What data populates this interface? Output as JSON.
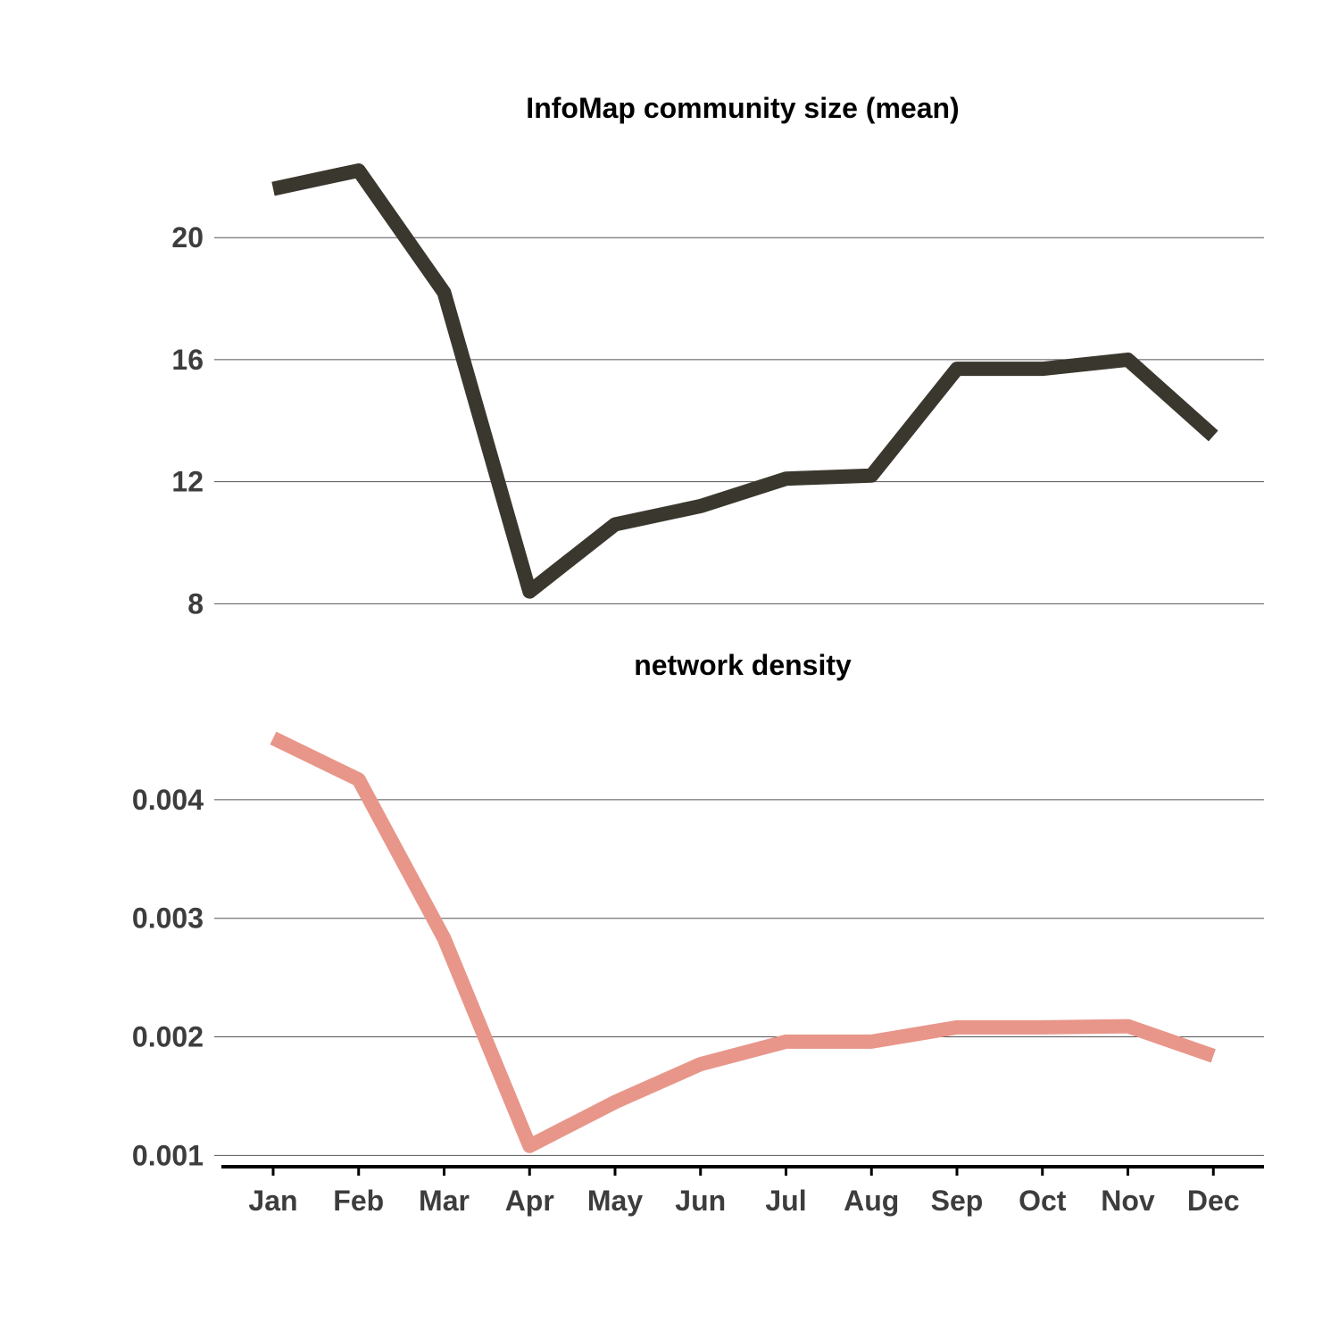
{
  "chart_data": [
    {
      "type": "line",
      "title": "InfoMap community size (mean)",
      "categories": [
        "Jan",
        "Feb",
        "Mar",
        "Apr",
        "May",
        "Jun",
        "Jul",
        "Aug",
        "Sep",
        "Oct",
        "Nov",
        "Dec"
      ],
      "series": [
        {
          "values": [
            21.6,
            22.2,
            18.2,
            8.4,
            10.6,
            11.2,
            12.1,
            12.2,
            15.7,
            15.7,
            16.0,
            13.5
          ],
          "color": "#3a372e"
        }
      ],
      "yticks": [
        8,
        12,
        16,
        20
      ],
      "ytick_labels": [
        "8",
        "12",
        "16",
        "20"
      ],
      "ylim": [
        7.6,
        23.4
      ],
      "grid": true
    },
    {
      "type": "line",
      "title": "network density",
      "categories": [
        "Jan",
        "Feb",
        "Mar",
        "Apr",
        "May",
        "Jun",
        "Jul",
        "Aug",
        "Sep",
        "Oct",
        "Nov",
        "Dec"
      ],
      "series": [
        {
          "values": [
            0.00452,
            0.00417,
            0.00283,
            0.00108,
            0.00145,
            0.00177,
            0.00196,
            0.00196,
            0.00208,
            0.00208,
            0.00209,
            0.00184
          ],
          "color": "#e8968a"
        }
      ],
      "yticks": [
        0.001,
        0.002,
        0.003,
        0.004
      ],
      "ytick_labels": [
        "0.001",
        "0.002",
        "0.003",
        "0.004"
      ],
      "ylim": [
        0.00092,
        0.00491
      ],
      "grid": true
    }
  ]
}
